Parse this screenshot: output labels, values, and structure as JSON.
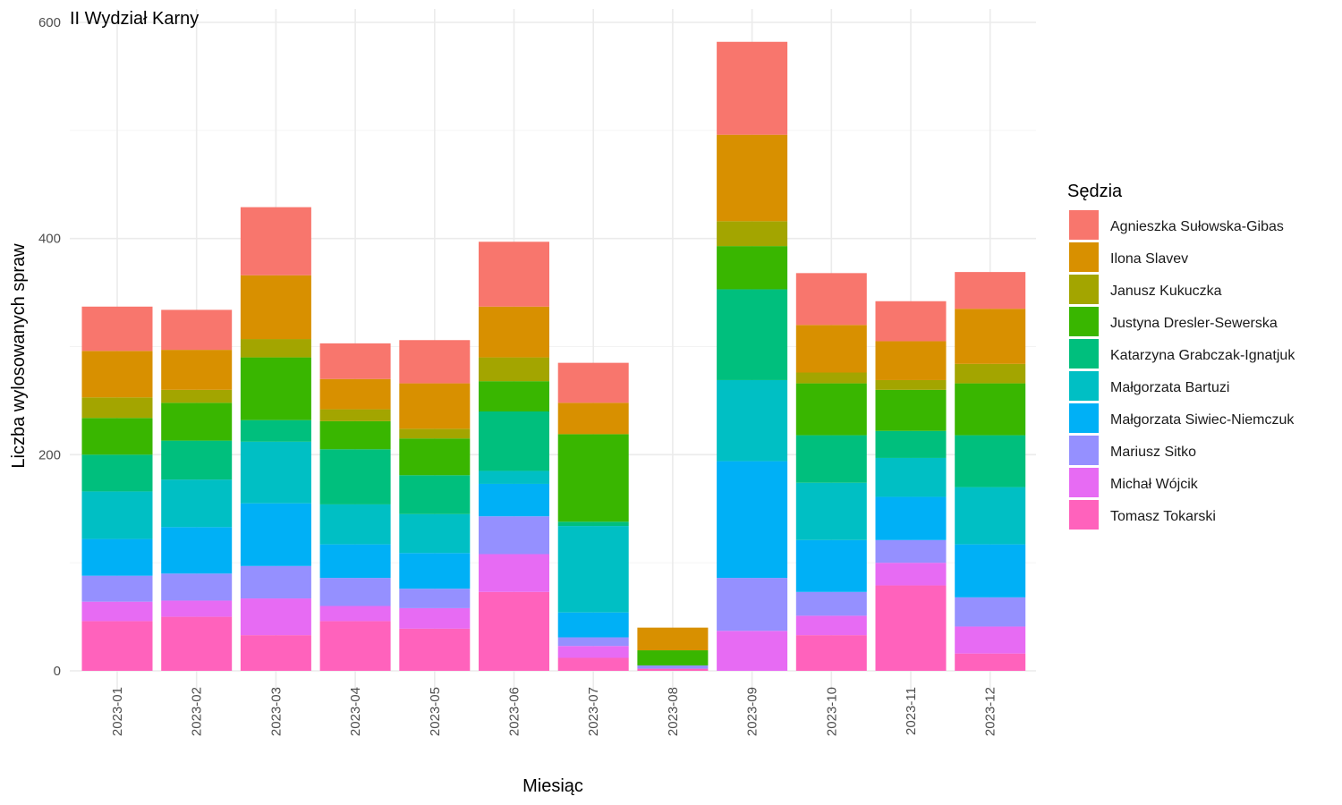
{
  "chart_data": {
    "type": "bar",
    "stacked": true,
    "title": "II Wydział Karny",
    "xlabel": "Miesiąc",
    "ylabel": "Liczba wylosowanych spraw",
    "ylim": [
      0,
      600
    ],
    "yticks": [
      0,
      200,
      400,
      600
    ],
    "grid": true,
    "legend_title": "Sędzia",
    "legend_position": "right",
    "categories": [
      "2023-01",
      "2023-02",
      "2023-03",
      "2023-04",
      "2023-05",
      "2023-06",
      "2023-07",
      "2023-08",
      "2023-09",
      "2023-10",
      "2023-11",
      "2023-12"
    ],
    "series": [
      {
        "name": "Agnieszka Sułowska-Gibas",
        "color": "#F8766D",
        "values": [
          41,
          37,
          63,
          33,
          40,
          60,
          37,
          0,
          86,
          48,
          37,
          34
        ]
      },
      {
        "name": "Ilona Slavev",
        "color": "#D89000",
        "values": [
          43,
          37,
          59,
          28,
          42,
          47,
          29,
          21,
          80,
          44,
          36,
          51
        ]
      },
      {
        "name": "Janusz Kukuczka",
        "color": "#A3A500",
        "values": [
          19,
          12,
          17,
          11,
          9,
          22,
          0,
          0,
          23,
          10,
          9,
          18
        ]
      },
      {
        "name": "Justyna Dresler-Sewerska",
        "color": "#39B600",
        "values": [
          34,
          35,
          58,
          26,
          34,
          28,
          81,
          14,
          40,
          48,
          38,
          48
        ]
      },
      {
        "name": "Katarzyna Grabczak-Ignatjuk",
        "color": "#00BF7D",
        "values": [
          34,
          36,
          20,
          51,
          36,
          55,
          4,
          0,
          84,
          44,
          25,
          48
        ]
      },
      {
        "name": "Małgorzata Bartuzi",
        "color": "#00BFC4",
        "values": [
          44,
          44,
          57,
          37,
          36,
          12,
          80,
          0,
          75,
          53,
          36,
          53
        ]
      },
      {
        "name": "Małgorzata Siwiec-Niemczuk",
        "color": "#00B0F6",
        "values": [
          34,
          43,
          58,
          31,
          33,
          30,
          23,
          0,
          108,
          48,
          40,
          49
        ]
      },
      {
        "name": "Mariusz Sitko",
        "color": "#9590FF",
        "values": [
          24,
          25,
          30,
          26,
          18,
          35,
          8,
          3,
          49,
          22,
          21,
          27
        ]
      },
      {
        "name": "Michał Wójcik",
        "color": "#E76BF3",
        "values": [
          18,
          15,
          34,
          14,
          19,
          35,
          11,
          0,
          37,
          18,
          21,
          25
        ]
      },
      {
        "name": "Tomasz Tokarski",
        "color": "#FF62BC",
        "values": [
          46,
          50,
          33,
          46,
          39,
          73,
          12,
          2,
          0,
          33,
          79,
          16
        ]
      }
    ]
  }
}
